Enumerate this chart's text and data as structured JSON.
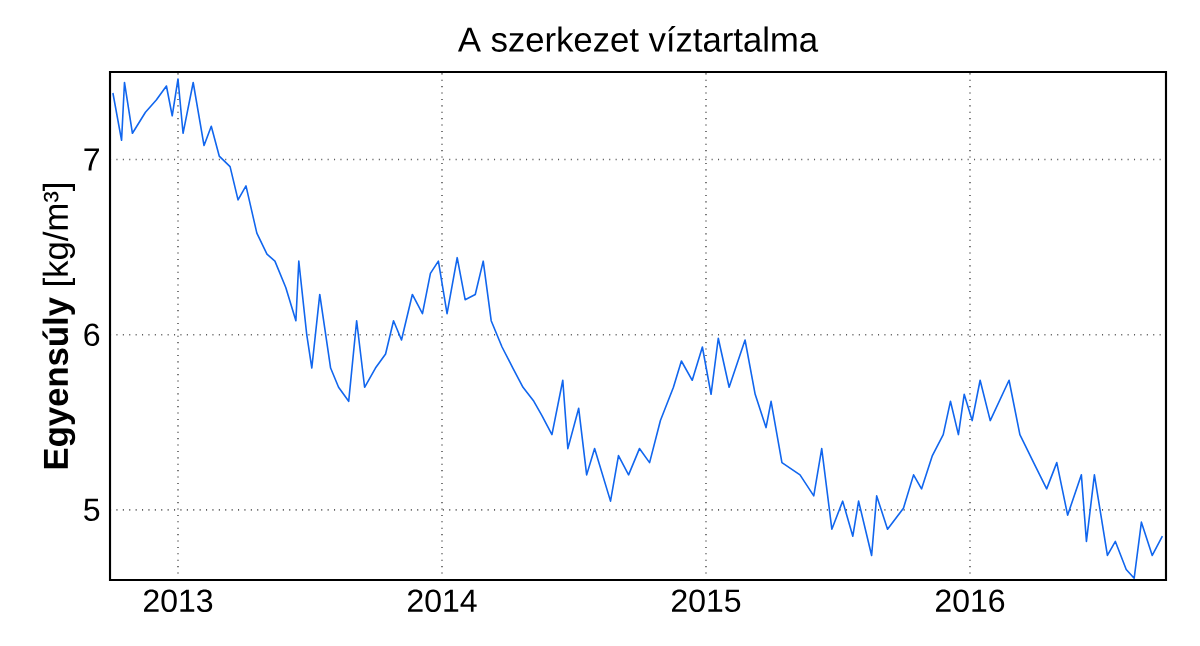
{
  "chart_data": {
    "type": "line",
    "title": "A szerkezet víztartalma",
    "ylabel": "**Egyensúly** [kg/m³]",
    "xlim": [
      "2012-09-29",
      "2016-09-28"
    ],
    "xticks": [
      {
        "value": "2013-01-01",
        "label": "2013"
      },
      {
        "value": "2014-01-01",
        "label": "2014"
      },
      {
        "value": "2015-01-01",
        "label": "2015"
      },
      {
        "value": "2016-01-01",
        "label": "2016"
      }
    ],
    "ylim": [
      4.6,
      7.5
    ],
    "yticks": [
      5,
      6,
      7
    ],
    "grid": true,
    "line_style": "solid",
    "x": [
      "2012-10-03",
      "2012-10-15",
      "2012-10-19",
      "2012-10-30",
      "2012-11-17",
      "2012-12-02",
      "2012-12-16",
      "2012-12-24",
      "2013-01-01",
      "2013-01-08",
      "2013-01-22",
      "2013-02-06",
      "2013-02-16",
      "2013-02-27",
      "2013-03-14",
      "2013-03-25",
      "2013-04-05",
      "2013-04-20",
      "2013-05-04",
      "2013-05-15",
      "2013-05-30",
      "2013-06-13",
      "2013-06-17",
      "2013-06-28",
      "2013-07-05",
      "2013-07-16",
      "2013-07-31",
      "2013-08-11",
      "2013-08-25",
      "2013-09-05",
      "2013-09-16",
      "2013-10-01",
      "2013-10-15",
      "2013-10-26",
      "2013-11-06",
      "2013-11-21",
      "2013-12-05",
      "2013-12-16",
      "2013-12-27",
      "2014-01-08",
      "2014-01-22",
      "2014-02-02",
      "2014-02-16",
      "2014-02-27",
      "2014-03-10",
      "2014-03-25",
      "2014-04-09",
      "2014-04-23",
      "2014-05-08",
      "2014-05-19",
      "2014-06-02",
      "2014-06-17",
      "2014-06-24",
      "2014-07-09",
      "2014-07-20",
      "2014-07-31",
      "2014-08-22",
      "2014-09-02",
      "2014-09-16",
      "2014-10-01",
      "2014-10-15",
      "2014-10-30",
      "2014-11-17",
      "2014-11-28",
      "2014-12-13",
      "2014-12-27",
      "2015-01-08",
      "2015-01-18",
      "2015-02-02",
      "2015-02-24",
      "2015-03-10",
      "2015-03-25",
      "2015-04-01",
      "2015-04-16",
      "2015-05-11",
      "2015-05-30",
      "2015-06-10",
      "2015-06-24",
      "2015-07-09",
      "2015-07-23",
      "2015-07-31",
      "2015-08-18",
      "2015-08-25",
      "2015-09-09",
      "2015-10-01",
      "2015-10-15",
      "2015-10-26",
      "2015-11-10",
      "2015-11-25",
      "2015-12-05",
      "2015-12-16",
      "2015-12-24",
      "2016-01-04",
      "2016-01-15",
      "2016-01-29",
      "2016-02-24",
      "2016-03-10",
      "2016-03-29",
      "2016-04-16",
      "2016-04-30",
      "2016-05-15",
      "2016-06-03",
      "2016-06-10",
      "2016-06-21",
      "2016-07-09",
      "2016-07-20",
      "2016-08-04",
      "2016-08-15",
      "2016-08-25",
      "2016-09-09",
      "2016-09-23"
    ],
    "series": [
      {
        "color": "#1166ee",
        "values": [
          7.38,
          7.11,
          7.44,
          7.15,
          7.27,
          7.34,
          7.42,
          7.25,
          7.46,
          7.15,
          7.44,
          7.08,
          7.19,
          7.02,
          6.96,
          6.77,
          6.85,
          6.58,
          6.46,
          6.42,
          6.27,
          6.08,
          6.42,
          6.0,
          5.81,
          6.23,
          5.81,
          5.7,
          5.62,
          6.08,
          5.7,
          5.81,
          5.89,
          6.08,
          5.97,
          6.23,
          6.12,
          6.35,
          6.42,
          6.12,
          6.44,
          6.2,
          6.23,
          6.42,
          6.08,
          5.93,
          5.81,
          5.7,
          5.62,
          5.54,
          5.43,
          5.74,
          5.35,
          5.58,
          5.2,
          5.35,
          5.05,
          5.31,
          5.2,
          5.35,
          5.27,
          5.51,
          5.7,
          5.85,
          5.74,
          5.93,
          5.66,
          5.98,
          5.7,
          5.97,
          5.66,
          5.47,
          5.62,
          5.27,
          5.2,
          5.08,
          5.35,
          4.89,
          5.05,
          4.85,
          5.05,
          4.74,
          5.08,
          4.89,
          5.01,
          5.2,
          5.12,
          5.31,
          5.43,
          5.62,
          5.43,
          5.66,
          5.51,
          5.74,
          5.51,
          5.74,
          5.43,
          5.27,
          5.12,
          5.27,
          4.97,
          5.2,
          4.82,
          5.2,
          4.74,
          4.82,
          4.66,
          4.61,
          4.93,
          4.74,
          4.85
        ]
      }
    ]
  }
}
